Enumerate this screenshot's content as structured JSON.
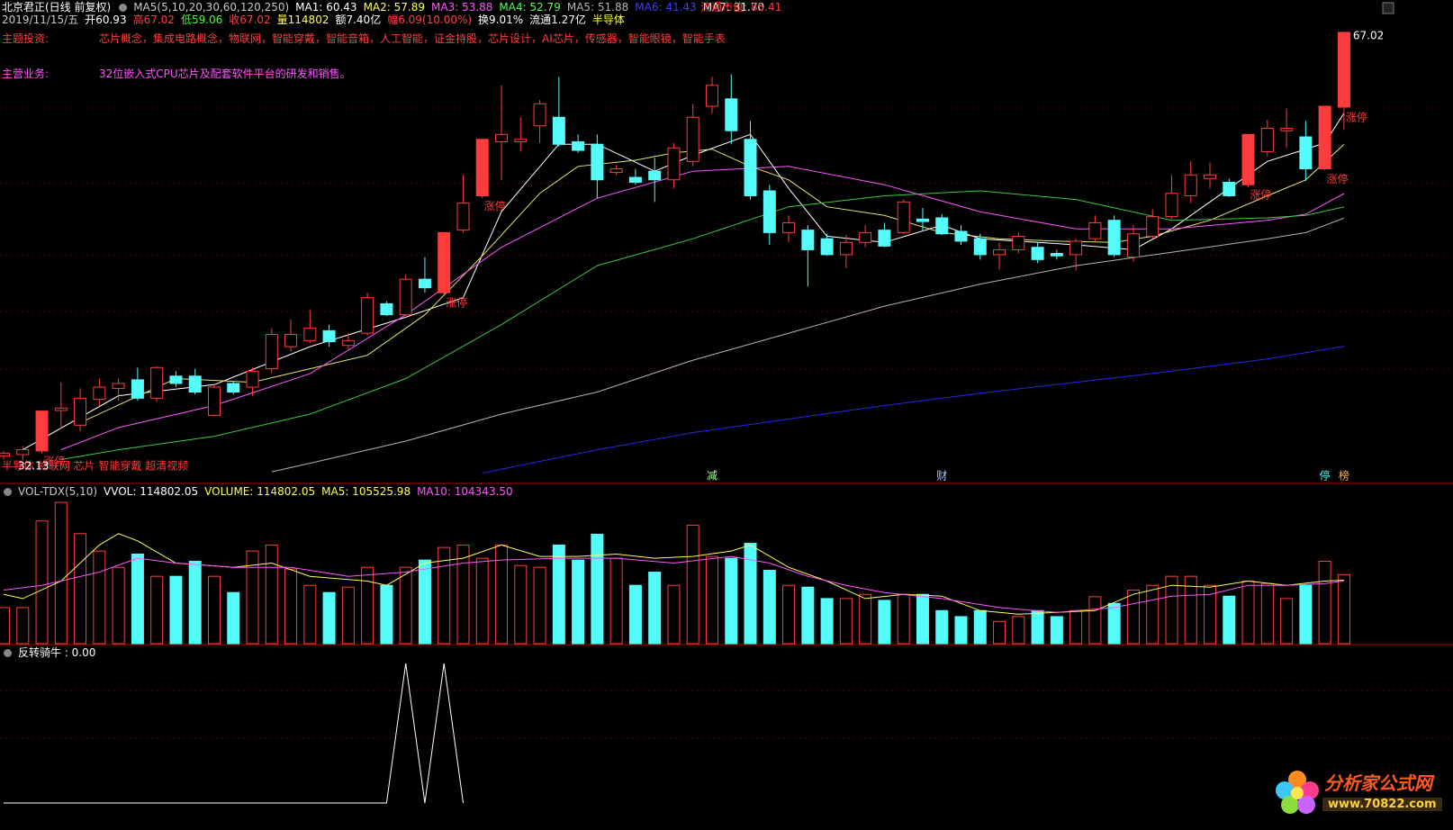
{
  "header": {
    "title": "北京君正(日线 前复权)",
    "ma_setting": "MA5(5,10,20,30,60,120,250)",
    "ma_readouts": [
      {
        "text": "MA1: 60.43",
        "color": "#ffffff"
      },
      {
        "text": "MA2: 57.89",
        "color": "#ffff54"
      },
      {
        "text": "MA3: 53.88",
        "color": "#ff54ff"
      },
      {
        "text": "MA4: 52.79",
        "color": "#54ff54"
      },
      {
        "text": "MA5: 51.88",
        "color": "#b4b4b4"
      },
      {
        "text": "MA6: 41.43",
        "color": "#3c3cff"
      },
      {
        "text": "MA7: 31.70",
        "color": "#ffffff"
      }
    ],
    "market_cap": "流通市值: 85.41",
    "quote": [
      {
        "text": "2019/11/15/五",
        "color": "#c8c8c8"
      },
      {
        "text": "开60.93",
        "color": "#ffffff"
      },
      {
        "text": "高67.02",
        "color": "#ff4040"
      },
      {
        "text": "低59.06",
        "color": "#40ff40"
      },
      {
        "text": "收67.02",
        "color": "#ff4040"
      },
      {
        "text": "量114802",
        "color": "#ffff54"
      },
      {
        "text": "额7.40亿",
        "color": "#ffffff"
      },
      {
        "text": "幅6.09(10.00%)",
        "color": "#ff4040"
      },
      {
        "text": "换9.01%",
        "color": "#ffffff"
      },
      {
        "text": "流通1.27亿",
        "color": "#ffffff"
      },
      {
        "text": "半导体",
        "color": "#ffff54"
      }
    ]
  },
  "info": {
    "theme_label": "主题投资:",
    "theme": "芯片概念，集成电路概念，物联网，智能穿戴，智能音箱，人工智能，证金持股，芯片设计，AI芯片，传感器，智能眼镜，智能手表",
    "business_label": "主营业务:",
    "business": "32位嵌入式CPU芯片及配套软件平台的研发和销售。"
  },
  "chart_data": [
    {
      "type": "candlestick",
      "ylim": [
        30.4,
        67.75
      ],
      "up_color": "#ff3c3c",
      "down_color": "#54fcfc",
      "open": [
        32.5,
        32.6,
        32.9,
        36.2,
        35.0,
        37.1,
        38.0,
        38.7,
        37.2,
        39.0,
        39.0,
        35.8,
        38.4,
        38.1,
        39.6,
        41.4,
        41.9,
        42.7,
        41.5,
        42.5,
        44.9,
        44.0,
        46.9,
        45.8,
        50.9,
        53.7,
        58.1,
        58.1,
        59.4,
        60.1,
        58.1,
        57.9,
        55.6,
        55.2,
        55.7,
        55.0,
        56.5,
        61.0,
        61.6,
        58.3,
        54.1,
        50.7,
        50.9,
        50.2,
        48.9,
        49.9,
        50.9,
        50.7,
        51.8,
        51.9,
        50.8,
        50.2,
        48.9,
        49.3,
        49.5,
        49.0,
        48.9,
        50.2,
        51.7,
        48.7,
        50.4,
        52.0,
        53.7,
        55.1,
        54.8,
        54.6,
        57.3,
        59.0,
        58.5,
        55.9,
        60.93
      ],
      "high": [
        32.9,
        33.3,
        36.15,
        38.5,
        38.0,
        38.8,
        38.8,
        39.7,
        39.8,
        39.4,
        39.6,
        38.3,
        38.6,
        39.7,
        42.9,
        43.6,
        44.4,
        43.2,
        42.5,
        45.8,
        45.1,
        47.3,
        48.7,
        50.7,
        55.4,
        58.3,
        62.7,
        60.1,
        61.5,
        63.4,
        58.7,
        58.7,
        56.2,
        55.9,
        56.8,
        58.0,
        61.2,
        63.4,
        63.6,
        59.8,
        54.6,
        52.1,
        51.3,
        50.6,
        50.5,
        51.3,
        51.5,
        53.4,
        52.7,
        52.2,
        51.3,
        50.6,
        49.9,
        50.7,
        49.9,
        49.3,
        50.2,
        52.1,
        52.1,
        51.3,
        52.6,
        55.4,
        56.5,
        56.4,
        55.1,
        58.7,
        59.9,
        60.8,
        59.8,
        61.0,
        67.02
      ],
      "low": [
        32.2,
        32.13,
        32.7,
        34.7,
        34.5,
        36.6,
        37.0,
        37.0,
        36.9,
        38.1,
        37.5,
        35.7,
        37.5,
        37.4,
        39.2,
        41.0,
        41.7,
        41.4,
        41.2,
        42.3,
        43.9,
        43.9,
        45.8,
        45.6,
        50.7,
        53.5,
        55.0,
        57.3,
        58.0,
        57.7,
        57.2,
        53.5,
        55.4,
        54.6,
        53.2,
        54.3,
        56.1,
        60.4,
        57.9,
        53.4,
        49.7,
        49.9,
        46.3,
        48.8,
        47.8,
        49.5,
        49.5,
        50.6,
        50.8,
        50.5,
        49.7,
        48.5,
        47.7,
        49.0,
        48.2,
        48.5,
        47.6,
        50.0,
        48.7,
        48.3,
        50.2,
        51.8,
        53.1,
        54.3,
        53.6,
        54.4,
        56.9,
        57.6,
        54.9,
        55.8,
        59.06
      ],
      "close": [
        32.7,
        33.0,
        36.15,
        36.4,
        37.2,
        38.1,
        38.4,
        37.2,
        39.7,
        38.4,
        37.7,
        38.1,
        37.7,
        39.4,
        42.4,
        42.4,
        42.9,
        41.8,
        41.9,
        45.4,
        44.0,
        46.9,
        46.2,
        50.7,
        53.1,
        58.3,
        58.7,
        58.3,
        61.2,
        57.9,
        57.4,
        55.0,
        55.9,
        54.8,
        55.0,
        57.6,
        60.1,
        62.7,
        59.0,
        53.7,
        50.7,
        51.5,
        49.3,
        48.9,
        49.9,
        50.7,
        49.6,
        53.2,
        51.6,
        50.6,
        50.0,
        48.9,
        49.3,
        50.4,
        48.5,
        48.8,
        50.0,
        51.5,
        48.9,
        50.6,
        52.0,
        53.9,
        55.4,
        55.4,
        53.7,
        58.7,
        59.2,
        59.2,
        55.9,
        61.0,
        67.02
      ],
      "series": [
        {
          "color": "#ffffff",
          "x": [
            1,
            6,
            11,
            16,
            21,
            24,
            26,
            29,
            31,
            34,
            36,
            39,
            41,
            43,
            46,
            49,
            51,
            54,
            56,
            59,
            61,
            63,
            66,
            69,
            70
          ],
          "values": [
            33.0,
            37.4,
            38.3,
            41.4,
            43.8,
            45.4,
            52.4,
            57.9,
            57.9,
            55.7,
            57.0,
            58.7,
            54.3,
            50.4,
            49.9,
            51.3,
            50.2,
            49.9,
            49.7,
            49.3,
            51.0,
            53.2,
            56.5,
            58.0,
            60.43
          ]
        },
        {
          "color": "#e6e66e",
          "x": [
            4,
            9,
            13,
            16,
            19,
            22,
            25,
            28,
            30,
            33,
            35,
            37,
            39,
            41,
            43,
            46,
            49,
            52,
            55,
            58,
            60,
            63,
            66,
            68,
            70
          ],
          "values": [
            35.2,
            38.8,
            38.5,
            39.6,
            40.7,
            44.0,
            48.8,
            53.9,
            56.1,
            56.6,
            57.2,
            57.5,
            56.1,
            55.0,
            52.8,
            52.1,
            50.7,
            50.2,
            50.0,
            49.9,
            50.4,
            51.7,
            53.7,
            55.0,
            57.89
          ]
        },
        {
          "color": "#ff54ff",
          "x": [
            3,
            6,
            11,
            16,
            21,
            26,
            31,
            36,
            41,
            46,
            51,
            56,
            61,
            66,
            68,
            70
          ],
          "values": [
            33.0,
            34.8,
            36.6,
            39.2,
            44.0,
            49.5,
            53.5,
            55.7,
            56.1,
            54.6,
            52.4,
            51.0,
            51.0,
            51.7,
            52.2,
            53.88
          ]
        },
        {
          "color": "#3cc83c",
          "x": [
            3,
            6,
            11,
            16,
            21,
            26,
            31,
            36,
            41,
            46,
            51,
            56,
            61,
            66,
            68,
            70
          ],
          "values": [
            32.2,
            33.0,
            34.1,
            35.9,
            38.8,
            43.2,
            48.0,
            50.2,
            52.8,
            53.7,
            54.1,
            53.4,
            51.7,
            51.9,
            52.1,
            52.79
          ]
        },
        {
          "color": "#b4b4b4",
          "x": [
            14,
            16,
            21,
            26,
            31,
            36,
            41,
            46,
            51,
            56,
            61,
            66,
            68,
            70
          ],
          "values": [
            31.2,
            31.9,
            33.7,
            35.9,
            37.7,
            40.3,
            42.5,
            44.7,
            46.5,
            48.0,
            49.1,
            50.2,
            50.7,
            51.88
          ]
        },
        {
          "color": "#2828e6",
          "x": [
            25,
            31,
            36,
            41,
            46,
            51,
            56,
            61,
            66,
            70
          ],
          "values": [
            31.1,
            33.0,
            34.4,
            35.5,
            36.6,
            37.6,
            38.5,
            39.4,
            40.4,
            41.43
          ]
        }
      ],
      "limit_up": {
        "2": "涨停",
        "23": "涨停",
        "25": "涨停",
        "65": "涨停",
        "69": "涨停",
        "70": "涨停"
      },
      "events": {
        "37": {
          "text": "减",
          "color": "#a0ffa0"
        },
        "49": {
          "text": "财",
          "color": "#a0c8ff"
        },
        "69": {
          "text": "停",
          "color": "#54fcfc"
        },
        "70": {
          "text": "榜",
          "color": "#ffb050"
        }
      },
      "last_price_label": "67.02",
      "low_label": "32.13",
      "concepts": "半导体 物联网 芯片 智能穿戴 超清视频"
    },
    {
      "type": "bar",
      "ylim": [
        0,
        250000
      ],
      "header": [
        {
          "text": "VOL-TDX(5,10)",
          "color": "#c8c8c8"
        },
        {
          "text": "VVOL: 114802.05",
          "color": "#ffffff"
        },
        {
          "text": "VOLUME: 114802.05",
          "color": "#ffff54"
        },
        {
          "text": "MA5: 105525.98",
          "color": "#ffff54"
        },
        {
          "text": "MA10: 104343.50",
          "color": "#ff54ff"
        }
      ],
      "values": [
        60000,
        60000,
        204000,
        235000,
        183000,
        154000,
        127000,
        149000,
        112000,
        112000,
        137000,
        112000,
        85000,
        154000,
        164000,
        124000,
        97000,
        85000,
        94000,
        127000,
        97000,
        127000,
        139000,
        160000,
        164000,
        142000,
        164000,
        130000,
        127000,
        164000,
        139000,
        182000,
        142000,
        97000,
        119000,
        97000,
        197000,
        145000,
        142000,
        167000,
        122000,
        97000,
        94000,
        75000,
        75000,
        82000,
        72000,
        82000,
        82000,
        55000,
        45000,
        55000,
        37000,
        45000,
        55000,
        45000,
        55000,
        78000,
        67000,
        89000,
        97000,
        112000,
        112000,
        97000,
        79000,
        104000,
        100000,
        75000,
        97000,
        137000,
        114802.05
      ],
      "series": [
        {
          "color": "#ffff54",
          "x": [
            0,
            1,
            3,
            5,
            6,
            7,
            9,
            12,
            14,
            16,
            19,
            20,
            22,
            24,
            26,
            28,
            30,
            32,
            34,
            36,
            38,
            39,
            41,
            43,
            45,
            47,
            49,
            51,
            53,
            55,
            57,
            59,
            61,
            63,
            65,
            67,
            69,
            70
          ],
          "values": [
            82000,
            75000,
            104000,
            164000,
            183000,
            171000,
            134000,
            127000,
            134000,
            112000,
            104000,
            97000,
            134000,
            142000,
            164000,
            145000,
            145000,
            149000,
            142000,
            145000,
            154000,
            164000,
            127000,
            104000,
            75000,
            82000,
            79000,
            55000,
            49000,
            52000,
            55000,
            82000,
            97000,
            94000,
            104000,
            97000,
            104000,
            105525.98
          ]
        },
        {
          "color": "#ff54ff",
          "x": [
            0,
            2,
            5,
            7,
            9,
            12,
            15,
            18,
            21,
            24,
            26,
            29,
            32,
            35,
            38,
            40,
            42,
            44,
            46,
            49,
            52,
            55,
            58,
            61,
            63,
            65,
            67,
            69,
            70
          ],
          "values": [
            89000,
            97000,
            119000,
            142000,
            134000,
            127000,
            127000,
            112000,
            119000,
            134000,
            139000,
            142000,
            142000,
            134000,
            145000,
            134000,
            112000,
            97000,
            85000,
            75000,
            60000,
            52000,
            60000,
            79000,
            82000,
            97000,
            97000,
            100000,
            104343.5
          ]
        }
      ]
    },
    {
      "type": "line",
      "ylim": [
        0,
        1
      ],
      "color": "#ffffff",
      "header": "反转骑牛 : 0.00",
      "values": [
        0,
        0,
        0,
        0,
        0,
        0,
        0,
        0,
        0,
        0,
        0,
        0,
        0,
        0,
        0,
        0,
        0,
        0,
        0,
        0,
        0,
        1,
        0,
        1,
        0
      ]
    }
  ],
  "watermark": {
    "name": "分析家公式网",
    "url": "www.70822.com"
  }
}
